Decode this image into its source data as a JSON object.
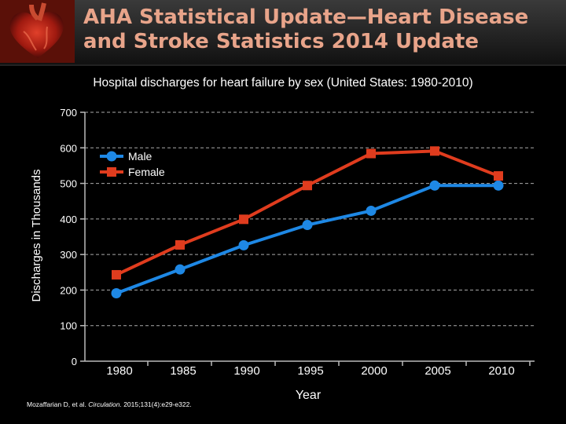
{
  "header": {
    "title_line1": "AHA Statistical Update—Heart Disease",
    "title_line2": "and Stroke Statistics 2014 Update",
    "logo_icon": "heart-anatomy-icon"
  },
  "colors": {
    "title": "#e8a48a",
    "male": "#1e88e5",
    "female": "#e03c1e",
    "grid": "#aaaaaa"
  },
  "chart_data": {
    "type": "line",
    "title": "Hospital discharges for heart failure by sex (United States: 1980-2010)",
    "xlabel": "Year",
    "ylabel": "Discharges in Thousands",
    "categories": [
      "1980",
      "1985",
      "1990",
      "1995",
      "2000",
      "2005",
      "2010"
    ],
    "yticks": [
      0,
      100,
      200,
      300,
      400,
      500,
      600,
      700
    ],
    "ylim": [
      0,
      700
    ],
    "grid": true,
    "legend_position": "top-left",
    "series": [
      {
        "name": "Male",
        "color": "#1e88e5",
        "marker": "circle",
        "values": [
          191,
          258,
          326,
          383,
          423,
          494,
          494
        ]
      },
      {
        "name": "Female",
        "color": "#e03c1e",
        "marker": "square",
        "values": [
          243,
          327,
          399,
          494,
          584,
          591,
          521
        ]
      }
    ]
  },
  "citation": {
    "authors": "Mozaffarian D, et al.",
    "journal": "Circulation.",
    "ref": "2015;131(4):e29-e322."
  }
}
